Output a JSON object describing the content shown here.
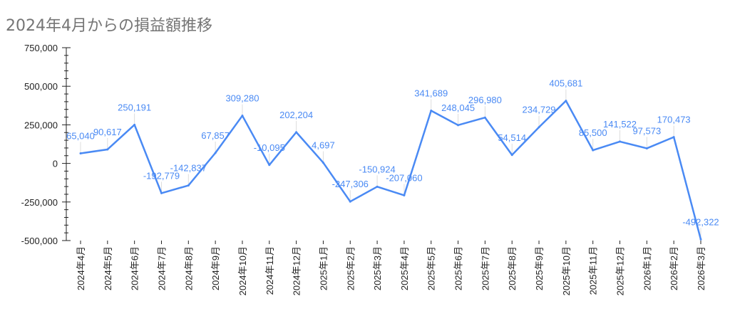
{
  "chart_data": {
    "type": "line",
    "title": "2024年4月からの損益額推移",
    "categories": [
      "2024年4月",
      "2024年5月",
      "2024年6月",
      "2024年7月",
      "2024年8月",
      "2024年9月",
      "2024年10月",
      "2024年11月",
      "2024年12月",
      "2025年1月",
      "2025年2月",
      "2025年3月",
      "2025年4月",
      "2025年5月",
      "2025年6月",
      "2025年7月",
      "2025年8月",
      "2025年9月",
      "2025年10月",
      "2025年11月",
      "2025年12月",
      "2026年1月",
      "2026年2月",
      "2026年3月"
    ],
    "values": [
      65040,
      90617,
      250191,
      -192779,
      -142837,
      67857,
      309280,
      -10095,
      202204,
      4697,
      -247306,
      -150924,
      -207060,
      341689,
      248045,
      296980,
      54514,
      234729,
      405681,
      85500,
      141522,
      97573,
      170473,
      -492322
    ],
    "data_labels": [
      "65,040",
      "90,617",
      "250,191",
      "-192,779",
      "-142,837",
      "67,857",
      "309,280",
      "-10,095",
      "202,204",
      "4,697",
      "-247,306",
      "-150,924",
      "-207,060",
      "341,689",
      "248,045",
      "296,980",
      "54,514",
      "234,729",
      "405,681",
      "85,500",
      "141,522",
      "97,573",
      "170,473",
      "-492,322"
    ],
    "yticks": [
      750000,
      500000,
      250000,
      0,
      -250000,
      -500000
    ],
    "ytick_labels": [
      "750,000",
      "500,000",
      "250,000",
      "0",
      "-250,000",
      "-500,000"
    ],
    "ylim": [
      -500000,
      750000
    ],
    "xlabel": "",
    "ylabel": "",
    "grid": false,
    "legend": "none",
    "line_color": "#4a8af4"
  }
}
